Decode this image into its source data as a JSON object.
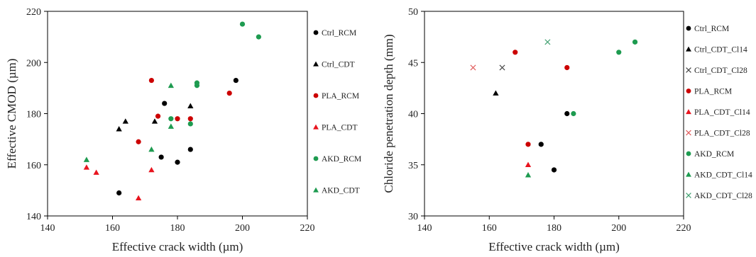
{
  "chart_data": [
    {
      "type": "scatter",
      "id": "left",
      "xlabel": "Effective crack width (µm)",
      "ylabel": "Effective CMOD (µm)",
      "xlim": [
        140,
        220
      ],
      "ylim": [
        140,
        220
      ],
      "xticks": [
        140,
        160,
        180,
        200,
        220
      ],
      "yticks": [
        140,
        160,
        180,
        200,
        220
      ],
      "grid": false,
      "legend_position": "right",
      "series": [
        {
          "name": "Ctrl_RCM",
          "marker": "circle",
          "color": "#000000",
          "points": [
            [
              162,
              149
            ],
            [
              175,
              163
            ],
            [
              176,
              184
            ],
            [
              180,
              161
            ],
            [
              184,
              166
            ],
            [
              198,
              193
            ]
          ]
        },
        {
          "name": "Ctrl_CDT",
          "marker": "triangle",
          "color": "#000000",
          "points": [
            [
              162,
              174
            ],
            [
              164,
              177
            ],
            [
              173,
              177
            ],
            [
              184,
              183
            ]
          ]
        },
        {
          "name": "PLA_RCM",
          "marker": "circle",
          "color": "#cc0000",
          "points": [
            [
              168,
              169
            ],
            [
              172,
              193
            ],
            [
              174,
              179
            ],
            [
              180,
              178
            ],
            [
              184,
              178
            ],
            [
              196,
              188
            ]
          ]
        },
        {
          "name": "PLA_CDT",
          "marker": "triangle",
          "color": "#e8141e",
          "points": [
            [
              152,
              159
            ],
            [
              155,
              157
            ],
            [
              168,
              147
            ],
            [
              172,
              158
            ]
          ]
        },
        {
          "name": "AKD_RCM",
          "marker": "circle",
          "color": "#1e9b50",
          "points": [
            [
              178,
              178
            ],
            [
              184,
              176
            ],
            [
              186,
              191
            ],
            [
              186,
              192
            ],
            [
              200,
              215
            ],
            [
              205,
              210
            ]
          ]
        },
        {
          "name": "AKD_CDT",
          "marker": "triangle",
          "color": "#1e9b50",
          "points": [
            [
              152,
              162
            ],
            [
              172,
              166
            ],
            [
              178,
              175
            ],
            [
              178,
              191
            ]
          ]
        }
      ]
    },
    {
      "type": "scatter",
      "id": "right",
      "xlabel": "Effective crack width (µm)",
      "ylabel": "Chloride penetration depth (mm)",
      "xlim": [
        140,
        220
      ],
      "ylim": [
        30,
        50
      ],
      "xticks": [
        140,
        160,
        180,
        200,
        220
      ],
      "yticks": [
        30,
        35,
        40,
        45,
        50
      ],
      "grid": false,
      "legend_position": "right",
      "series": [
        {
          "name": "Ctrl_RCM",
          "marker": "circle",
          "color": "#000000",
          "points": [
            [
              176,
              37
            ],
            [
              180,
              34.5
            ],
            [
              184,
              40
            ]
          ]
        },
        {
          "name": "Ctrl_CDT_Cl14",
          "marker": "triangle",
          "color": "#000000",
          "points": [
            [
              162,
              42
            ]
          ]
        },
        {
          "name": "Ctrl_CDT_Cl28",
          "marker": "x",
          "color": "#444444",
          "points": [
            [
              164,
              44.5
            ]
          ]
        },
        {
          "name": "PLA_RCM",
          "marker": "circle",
          "color": "#cc0000",
          "points": [
            [
              168,
              46
            ],
            [
              172,
              37
            ],
            [
              184,
              44.5
            ]
          ]
        },
        {
          "name": "PLA_CDT_Cl14",
          "marker": "triangle",
          "color": "#e8141e",
          "points": [
            [
              172,
              35
            ]
          ]
        },
        {
          "name": "PLA_CDT_Cl28",
          "marker": "x",
          "color": "#e05a5a",
          "points": [
            [
              155,
              44.5
            ]
          ]
        },
        {
          "name": "AKD_RCM",
          "marker": "circle",
          "color": "#1e9b50",
          "points": [
            [
              186,
              40
            ],
            [
              200,
              46
            ],
            [
              205,
              47
            ]
          ]
        },
        {
          "name": "AKD_CDT_Cl14",
          "marker": "triangle",
          "color": "#1e9b50",
          "points": [
            [
              172,
              34
            ]
          ]
        },
        {
          "name": "AKD_CDT_Cl28",
          "marker": "x",
          "color": "#40a070",
          "points": [
            [
              178,
              47
            ]
          ]
        }
      ]
    }
  ]
}
